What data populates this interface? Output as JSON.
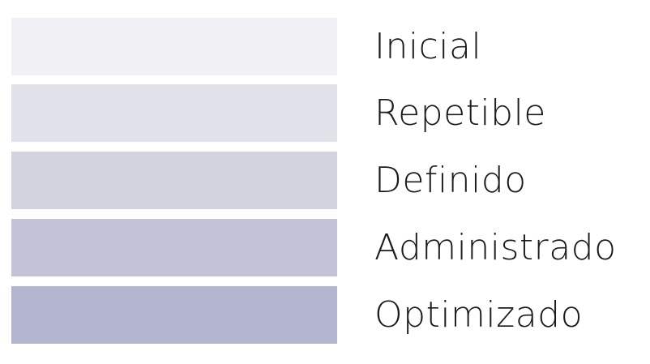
{
  "levels": [
    {
      "label": "Inicial",
      "color": "#f1f1f5"
    },
    {
      "label": "Repetible",
      "color": "#e1e1ea"
    },
    {
      "label": "Definido",
      "color": "#d3d3df"
    },
    {
      "label": "Administrado",
      "color": "#c2c3d6"
    },
    {
      "label": "Optimizado",
      "color": "#b3b4cd"
    }
  ]
}
